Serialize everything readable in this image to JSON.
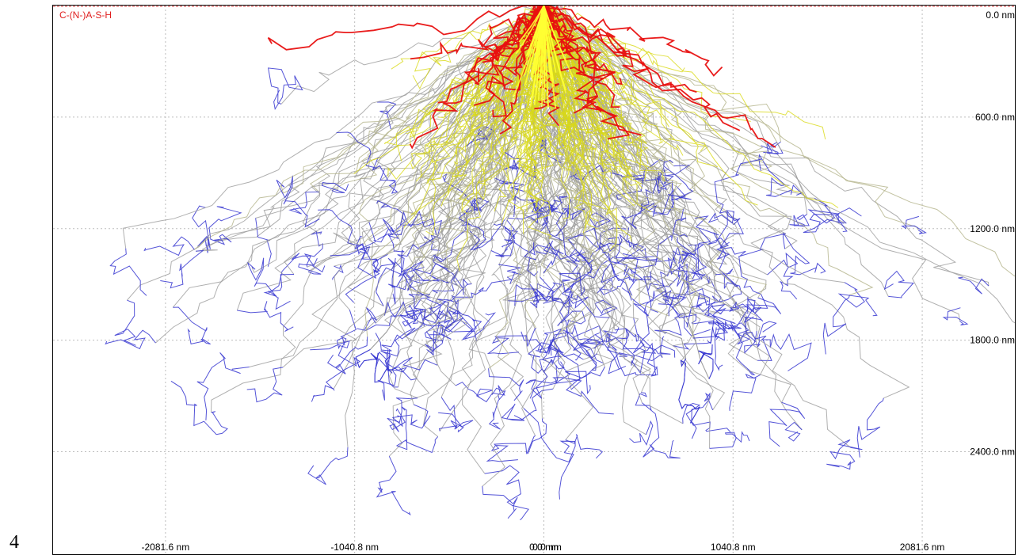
{
  "page_number": "4",
  "chart_data": {
    "type": "line",
    "title": "C-(N-)A-S-H",
    "xlabel": "",
    "ylabel": "",
    "x_unit": "nm",
    "y_unit": "nm",
    "xlim": [
      -2700,
      2600
    ],
    "ylim": [
      0,
      2960
    ],
    "y_axis_inverted": true,
    "grid": true,
    "x_ticks": [
      {
        "value": -2081.6,
        "label": "-2081.6 nm"
      },
      {
        "value": -1040.8,
        "label": "-1040.8 nm"
      },
      {
        "value": 0.0,
        "label": "0.0 nm"
      },
      {
        "value": 1040.8,
        "label": "1040.8 nm"
      },
      {
        "value": 2081.6,
        "label": "2081.6 nm"
      }
    ],
    "x_tick_overlap_label": "0.0 nm",
    "y_ticks": [
      {
        "value": 0.0,
        "label": "0.0 nm"
      },
      {
        "value": 600.0,
        "label": "600.0 nm"
      },
      {
        "value": 1200.0,
        "label": "1200.0 nm"
      },
      {
        "value": 1800.0,
        "label": "1800.0 nm"
      },
      {
        "value": 2400.0,
        "label": "2400.0 nm"
      }
    ],
    "colors": {
      "red_traj": "#e81010",
      "yellow_traj": "#d9d916",
      "yellow_core": "#ffff33",
      "gray_traj": "#9b9b9b",
      "olive_traj": "#b3b38a",
      "blue_traj": "#3535d0",
      "title": "#e02020"
    },
    "series": [
      {
        "color_key": "red_traj",
        "count": 28,
        "x_spread": 650,
        "depth_mean": 460,
        "depth_spread": 300,
        "blue_tail": false
      },
      {
        "color_key": "yellow_traj",
        "count": 160,
        "x_spread": 480,
        "depth_mean": 820,
        "depth_spread": 380,
        "blue_tail": false
      },
      {
        "color_key": "olive_traj",
        "count": 70,
        "x_spread": 900,
        "depth_mean": 1250,
        "depth_spread": 500,
        "blue_tail": true
      },
      {
        "color_key": "gray_traj",
        "count": 150,
        "x_spread": 1000,
        "depth_mean": 1750,
        "depth_spread": 600,
        "blue_tail": true
      }
    ]
  }
}
